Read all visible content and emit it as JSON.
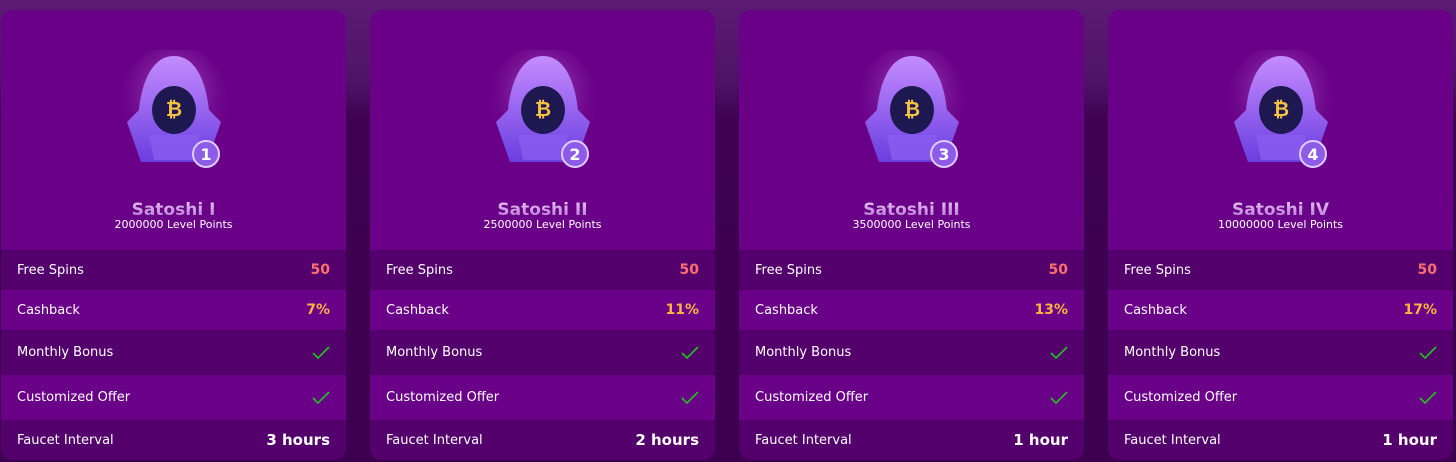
{
  "colors": {
    "card": "#6a0088",
    "row_dark": "#53006c",
    "free_spins": "#ff6f6f",
    "cashback": "#ffb340",
    "check": "#22c022"
  },
  "row_labels": {
    "free_spins": "Free Spins",
    "cashback": "Cashback",
    "monthly_bonus": "Monthly Bonus",
    "customized_offer": "Customized Offer",
    "faucet_interval": "Faucet Interval"
  },
  "levels": [
    {
      "title": "Satoshi I",
      "points": "2000000 Level Points",
      "badge": "1",
      "free_spins": "50",
      "cashback": "7%",
      "monthly_bonus": "check-icon",
      "customized_offer": "check-icon",
      "faucet_interval": "3 hours"
    },
    {
      "title": "Satoshi II",
      "points": "2500000 Level Points",
      "badge": "2",
      "free_spins": "50",
      "cashback": "11%",
      "monthly_bonus": "check-icon",
      "customized_offer": "check-icon",
      "faucet_interval": "2 hours"
    },
    {
      "title": "Satoshi III",
      "points": "3500000 Level Points",
      "badge": "3",
      "free_spins": "50",
      "cashback": "13%",
      "monthly_bonus": "check-icon",
      "customized_offer": "check-icon",
      "faucet_interval": "1 hour"
    },
    {
      "title": "Satoshi IV",
      "points": "10000000 Level Points",
      "badge": "4",
      "free_spins": "50",
      "cashback": "17%",
      "monthly_bonus": "check-icon",
      "customized_offer": "check-icon",
      "faucet_interval": "1 hour"
    }
  ]
}
